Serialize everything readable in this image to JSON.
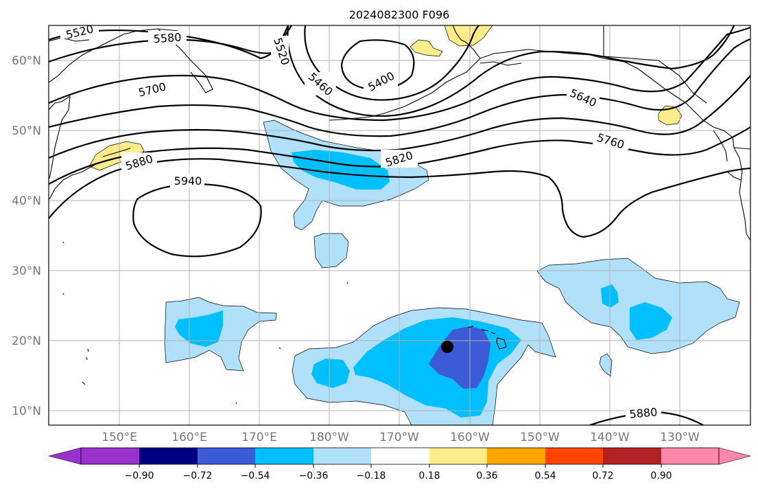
{
  "title": "2024082300 F096",
  "lat_labels": [
    "60°N",
    "50°N",
    "40°N",
    "30°N",
    "20°N",
    "10°N"
  ],
  "lon_labels": [
    "150°E",
    "160°E",
    "170°E",
    "180°W",
    "170°W",
    "160°W",
    "150°W",
    "140°W",
    "130°W"
  ],
  "contour_labels": [
    "5520",
    "5580",
    "5520",
    "5460",
    "5400",
    "5700",
    "5640",
    "5760",
    "5880",
    "5820",
    "5940",
    "5880"
  ],
  "colorbar": {
    "ticks": [
      "−0.90",
      "−0.72",
      "−0.54",
      "−0.36",
      "−0.18",
      "0.18",
      "0.36",
      "0.54",
      "0.72",
      "0.90"
    ],
    "colors": [
      "#9932cc",
      "#000080",
      "#3b5bd6",
      "#00bfff",
      "#b0e0fa",
      "#ffffff",
      "#ffec8b",
      "#ffa500",
      "#ff4500",
      "#b22222",
      "#ff88aa"
    ]
  },
  "fill_colors": {
    "light_blue": "#b0e0fa",
    "blue": "#00bfff",
    "dark_blue": "#3b5bd6",
    "yellow": "#ffec8b"
  }
}
